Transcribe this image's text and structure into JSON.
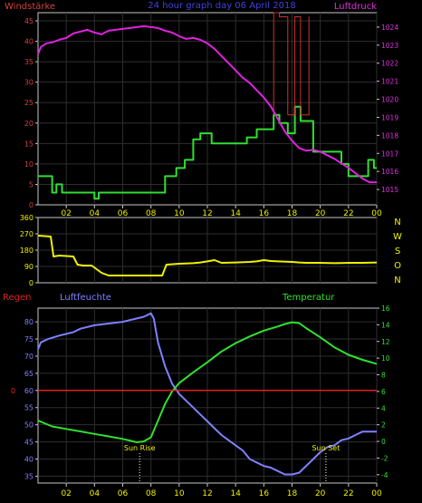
{
  "colors": {
    "background": "#000000",
    "frame": "#c8c8c8",
    "grid": "#2e2e2e",
    "wind_axis": "#d24040",
    "pressure_axis": "#e030e0",
    "title": "#4040e0",
    "direction_axis": "#f0f000",
    "rain_axis": "#e02020",
    "humidity_axis": "#8080ff",
    "temp_axis": "#30e030",
    "xtick": "#f0f000",
    "wind_line": "#30e030",
    "gust_line": "#d03030",
    "pressure_line": "#e020e0",
    "direction_line": "#f0f000",
    "humidity_line": "#8080ff",
    "temp_line": "#30e030",
    "rain_line": "#e02020",
    "sun_label": "#f0f000"
  },
  "chart_data": [
    {
      "type": "line",
      "title": "24 hour graph day 06 April 2018",
      "left_axis_label": "Windstärke",
      "right_axis_label": "Luftdruck",
      "x_ticks": [
        "02",
        "04",
        "06",
        "08",
        "10",
        "12",
        "14",
        "16",
        "18",
        "20",
        "22",
        "00"
      ],
      "x_range": [
        0,
        24
      ],
      "y_left_range": [
        0,
        47
      ],
      "y_left_ticks": [
        0,
        5,
        10,
        15,
        20,
        25,
        30,
        35,
        40,
        45
      ],
      "y_right_range": [
        1014.15,
        1024.8
      ],
      "y_right_ticks": [
        1015,
        1016,
        1017,
        1018,
        1019,
        1020,
        1021,
        1022,
        1023,
        1024
      ],
      "series": [
        {
          "key": "wind",
          "x": [
            0,
            1,
            1,
            1.3,
            1.3,
            1.7,
            1.7,
            2.1,
            2.1,
            4,
            4,
            4.3,
            4.3,
            9,
            9,
            9.8,
            9.8,
            10.4,
            10.4,
            11,
            11,
            11.5,
            11.5,
            12.3,
            12.3,
            14.8,
            14.8,
            15.5,
            15.5,
            16.7,
            16.7,
            17.1,
            17.1,
            17.7,
            17.7,
            18.2,
            18.2,
            18.6,
            18.6,
            19.5,
            19.5,
            21.5,
            21.5,
            22,
            22,
            23.4,
            23.4,
            23.8,
            23.8,
            24
          ],
          "y": [
            7,
            7,
            3,
            3,
            5,
            5,
            3,
            3,
            3,
            3,
            1.5,
            1.5,
            3,
            3,
            7,
            7,
            9,
            9,
            11,
            11,
            16,
            16,
            17.5,
            17.5,
            15,
            15,
            16.5,
            16.5,
            18.5,
            18.5,
            22,
            22,
            20,
            20,
            17.5,
            17.5,
            24,
            24,
            20.5,
            20.5,
            13,
            13,
            10,
            10,
            7,
            7,
            11,
            11,
            9,
            9
          ]
        },
        {
          "key": "gust",
          "x": [
            16.7,
            16.7,
            17.1,
            17.1,
            17.7,
            17.7,
            18.2,
            18.2,
            18.6,
            18.6,
            19.2,
            19.2
          ],
          "y": [
            22,
            47,
            47,
            46,
            46,
            22,
            22,
            46,
            46,
            22,
            22,
            46
          ]
        },
        {
          "key": "pressure",
          "x": [
            0,
            0.2,
            0.6,
            1,
            1.5,
            2,
            2.5,
            3,
            3.5,
            4,
            4.5,
            5,
            5.5,
            6,
            6.5,
            7,
            7.5,
            8,
            8.5,
            9,
            9.5,
            10,
            10.5,
            11,
            11.5,
            12,
            12.5,
            13,
            13.5,
            14,
            14.5,
            15,
            15.5,
            16,
            16.5,
            17,
            17.5,
            18,
            18.5,
            19,
            19.5,
            20,
            20.5,
            21,
            21.5,
            22,
            22.5,
            23,
            23.5,
            24
          ],
          "y": [
            1022.5,
            1022.9,
            1023.1,
            1023.15,
            1023.3,
            1023.4,
            1023.65,
            1023.75,
            1023.85,
            1023.7,
            1023.6,
            1023.8,
            1023.85,
            1023.9,
            1023.95,
            1024.0,
            1024.05,
            1024.0,
            1023.95,
            1023.8,
            1023.7,
            1023.5,
            1023.35,
            1023.4,
            1023.3,
            1023.1,
            1022.8,
            1022.4,
            1022.0,
            1021.6,
            1021.2,
            1020.9,
            1020.5,
            1020.1,
            1019.6,
            1018.9,
            1018.2,
            1017.7,
            1017.3,
            1017.15,
            1017.2,
            1017.1,
            1016.9,
            1016.7,
            1016.45,
            1016.2,
            1015.9,
            1015.6,
            1015.4,
            1015.4
          ]
        }
      ]
    },
    {
      "type": "line",
      "right_axis_label": "N W S O N",
      "x_range": [
        0,
        24
      ],
      "y_range": [
        0,
        360
      ],
      "y_ticks": [
        0,
        90,
        180,
        270,
        360
      ],
      "series": [
        {
          "key": "direction",
          "x": [
            0,
            0.9,
            1.1,
            1.5,
            2.5,
            2.8,
            3.2,
            3.8,
            4.5,
            5,
            8.8,
            9.1,
            10,
            11,
            11.5,
            12,
            12.5,
            13,
            14,
            15,
            15.5,
            16,
            16.5,
            17,
            18,
            18.5,
            19,
            20,
            21,
            22,
            23,
            24
          ],
          "y": [
            260,
            255,
            145,
            150,
            145,
            100,
            95,
            95,
            55,
            40,
            40,
            100,
            105,
            108,
            112,
            118,
            125,
            110,
            112,
            115,
            118,
            125,
            120,
            118,
            115,
            112,
            110,
            110,
            108,
            110,
            110,
            112
          ]
        }
      ]
    },
    {
      "type": "line",
      "left_axis_label": "Regen",
      "left_inner_axis_label": "Luftfeuchte",
      "right_axis_label": "Temperatur",
      "x_ticks": [
        "02",
        "04",
        "06",
        "08",
        "10",
        "12",
        "14",
        "16",
        "18",
        "20",
        "22",
        "00"
      ],
      "x_range": [
        0,
        24
      ],
      "y_left_range": [
        33,
        84
      ],
      "y_left_ticks": [
        35,
        40,
        45,
        50,
        55,
        60,
        65,
        70,
        75,
        80
      ],
      "y_right_range": [
        -5,
        16
      ],
      "y_right_ticks": [
        -4,
        -2,
        0,
        2,
        4,
        6,
        8,
        10,
        12,
        14,
        16
      ],
      "annotations": [
        {
          "label": "Sun Rise",
          "x": 7.2
        },
        {
          "label": "Sun Set",
          "x": 20.4
        }
      ],
      "series": [
        {
          "key": "humidity",
          "x": [
            0,
            0.2,
            0.7,
            1.5,
            2.5,
            3,
            4,
            5,
            6,
            6.5,
            7,
            7.5,
            8,
            8.2,
            8.5,
            9,
            9.5,
            10,
            10.5,
            11,
            11.5,
            12,
            12.5,
            13,
            13.5,
            14,
            14.5,
            15,
            15.5,
            16,
            16.5,
            17,
            17.5,
            18,
            18.5,
            19,
            19.5,
            20,
            20.5,
            21,
            21.5,
            22,
            22.5,
            23,
            23.5,
            24
          ],
          "y": [
            72,
            74,
            75,
            76,
            77,
            78,
            79,
            79.5,
            80,
            80.5,
            81,
            81.5,
            82.5,
            81,
            74,
            67,
            62,
            59,
            57,
            55,
            53,
            51,
            49,
            47,
            45.5,
            44,
            42.5,
            40,
            39,
            38,
            37.5,
            36.5,
            35.5,
            35.5,
            36,
            38,
            40,
            42,
            43.5,
            44,
            45.5,
            46,
            47,
            48,
            48,
            48
          ]
        },
        {
          "key": "temperature",
          "x": [
            0,
            1,
            2,
            3,
            4,
            5,
            6,
            6.5,
            7,
            7.5,
            8,
            8.5,
            9,
            9.5,
            10,
            11,
            12,
            13,
            14,
            15,
            16,
            17,
            17.5,
            18,
            18.5,
            19,
            20,
            21,
            22,
            23,
            24
          ],
          "y": [
            2.5,
            1.8,
            1.5,
            1.2,
            0.9,
            0.6,
            0.3,
            0.1,
            -0.1,
            0.0,
            0.5,
            2.5,
            4.5,
            6.0,
            7.0,
            8.3,
            9.5,
            10.8,
            11.8,
            12.6,
            13.3,
            13.8,
            14.1,
            14.3,
            14.2,
            13.6,
            12.5,
            11.3,
            10.4,
            9.8,
            9.3
          ]
        },
        {
          "key": "rain",
          "x": [
            0,
            24
          ],
          "y": [
            60,
            60
          ]
        }
      ]
    }
  ]
}
